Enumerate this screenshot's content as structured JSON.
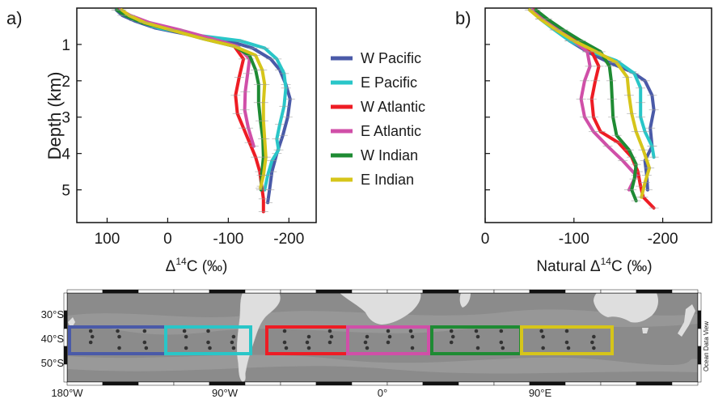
{
  "panel_a": {
    "label": "a)",
    "ylabel": "Depth (km)",
    "xlabel_delta": "Δ",
    "xlabel_sup": "14",
    "xlabel_rest": "C (‰)"
  },
  "panel_b": {
    "label": "b)",
    "xlabel_prefix": "Natural Δ",
    "xlabel_sup": "14",
    "xlabel_rest": "C (‰)"
  },
  "legend": [
    {
      "name": "W Pacific",
      "color": "#4a5aa8"
    },
    {
      "name": "E Pacific",
      "color": "#29c6c8"
    },
    {
      "name": "W Atlantic",
      "color": "#ee1c24"
    },
    {
      "name": "E Atlantic",
      "color": "#d04fa8"
    },
    {
      "name": "W Indian",
      "color": "#1e8b33"
    },
    {
      "name": "E Indian",
      "color": "#d6c51a"
    }
  ],
  "chart_data": [
    {
      "type": "line",
      "panel": "a",
      "xlabel": "Δ14C (‰)",
      "ylabel": "Depth (km)",
      "xlim": [
        150,
        -245
      ],
      "ylim": [
        0,
        5.9
      ],
      "xticks": [
        100,
        0,
        -100,
        -200
      ],
      "xtick_labels": [
        "100",
        "0",
        "-100",
        "-200"
      ],
      "yticks": [
        1,
        2,
        3,
        4,
        5
      ],
      "series": [
        {
          "name": "W Pacific",
          "color": "#4a5aa8",
          "points": [
            [
              85,
              0.05
            ],
            [
              75,
              0.2
            ],
            [
              55,
              0.35
            ],
            [
              20,
              0.55
            ],
            [
              -40,
              0.75
            ],
            [
              -100,
              0.9
            ],
            [
              -140,
              1.1
            ],
            [
              -170,
              1.4
            ],
            [
              -185,
              1.7
            ],
            [
              -195,
              2.1
            ],
            [
              -202,
              2.5
            ],
            [
              -198,
              3.0
            ],
            [
              -190,
              3.5
            ],
            [
              -180,
              4.0
            ],
            [
              -172,
              4.5
            ],
            [
              -168,
              5.0
            ],
            [
              -165,
              5.35
            ]
          ]
        },
        {
          "name": "E Pacific",
          "color": "#29c6c8",
          "points": [
            [
              80,
              0.05
            ],
            [
              70,
              0.2
            ],
            [
              50,
              0.35
            ],
            [
              15,
              0.55
            ],
            [
              -50,
              0.75
            ],
            [
              -120,
              0.9
            ],
            [
              -160,
              1.1
            ],
            [
              -180,
              1.4
            ],
            [
              -192,
              1.8
            ],
            [
              -195,
              2.2
            ],
            [
              -192,
              2.7
            ],
            [
              -185,
              3.2
            ],
            [
              -180,
              3.6
            ],
            [
              -183,
              3.9
            ],
            [
              -172,
              4.2
            ],
            [
              -165,
              4.6
            ],
            [
              -160,
              5.0
            ]
          ]
        },
        {
          "name": "W Atlantic",
          "color": "#ee1c24",
          "points": [
            [
              82,
              0.05
            ],
            [
              68,
              0.2
            ],
            [
              40,
              0.4
            ],
            [
              -10,
              0.6
            ],
            [
              -70,
              0.85
            ],
            [
              -110,
              1.05
            ],
            [
              -125,
              1.4
            ],
            [
              -118,
              1.9
            ],
            [
              -112,
              2.4
            ],
            [
              -115,
              2.9
            ],
            [
              -125,
              3.3
            ],
            [
              -135,
              3.7
            ],
            [
              -145,
              4.1
            ],
            [
              -152,
              4.5
            ],
            [
              -155,
              4.9
            ],
            [
              -158,
              5.25
            ],
            [
              -158,
              5.6
            ]
          ]
        },
        {
          "name": "E Atlantic",
          "color": "#d04fa8",
          "points": [
            [
              78,
              0.05
            ],
            [
              62,
              0.2
            ],
            [
              30,
              0.4
            ],
            [
              -20,
              0.6
            ],
            [
              -75,
              0.85
            ],
            [
              -115,
              1.05
            ],
            [
              -135,
              1.4
            ],
            [
              -132,
              1.8
            ],
            [
              -128,
              2.3
            ],
            [
              -127,
              2.8
            ],
            [
              -133,
              3.3
            ],
            [
              -142,
              3.8
            ]
          ]
        },
        {
          "name": "W Indian",
          "color": "#1e8b33",
          "points": [
            [
              84,
              0.05
            ],
            [
              70,
              0.2
            ],
            [
              42,
              0.4
            ],
            [
              -5,
              0.6
            ],
            [
              -60,
              0.85
            ],
            [
              -110,
              1.05
            ],
            [
              -135,
              1.3
            ],
            [
              -145,
              1.7
            ],
            [
              -150,
              2.1
            ],
            [
              -150,
              2.6
            ],
            [
              -153,
              3.1
            ],
            [
              -157,
              3.6
            ],
            [
              -158,
              4.1
            ],
            [
              -155,
              4.6
            ],
            [
              -154,
              5.0
            ]
          ]
        },
        {
          "name": "E Indian",
          "color": "#d6c51a",
          "points": [
            [
              76,
              0.05
            ],
            [
              64,
              0.2
            ],
            [
              38,
              0.4
            ],
            [
              -5,
              0.6
            ],
            [
              -60,
              0.85
            ],
            [
              -110,
              1.05
            ],
            [
              -145,
              1.3
            ],
            [
              -156,
              1.7
            ],
            [
              -160,
              2.1
            ],
            [
              -158,
              2.6
            ],
            [
              -158,
              3.1
            ],
            [
              -160,
              3.6
            ],
            [
              -162,
              4.1
            ],
            [
              -158,
              4.6
            ],
            [
              -153,
              4.95
            ]
          ]
        }
      ]
    },
    {
      "type": "line",
      "panel": "b",
      "xlabel": "Natural Δ14C (‰)",
      "xlim": [
        0,
        -255
      ],
      "ylim": [
        0,
        5.9
      ],
      "xticks": [
        0,
        -100,
        -200
      ],
      "xtick_labels": [
        "0",
        "-100",
        "-200"
      ],
      "series": [
        {
          "name": "W Pacific",
          "color": "#4a5aa8",
          "points": [
            [
              -55,
              0.05
            ],
            [
              -65,
              0.3
            ],
            [
              -80,
              0.6
            ],
            [
              -95,
              0.9
            ],
            [
              -115,
              1.2
            ],
            [
              -140,
              1.5
            ],
            [
              -165,
              1.75
            ],
            [
              -180,
              2.0
            ],
            [
              -188,
              2.4
            ],
            [
              -190,
              2.8
            ],
            [
              -186,
              3.3
            ],
            [
              -188,
              3.8
            ],
            [
              -180,
              4.2
            ],
            [
              -182,
              4.6
            ],
            [
              -183,
              5.0
            ]
          ]
        },
        {
          "name": "E Pacific",
          "color": "#29c6c8",
          "points": [
            [
              -52,
              0.05
            ],
            [
              -62,
              0.3
            ],
            [
              -78,
              0.6
            ],
            [
              -95,
              0.9
            ],
            [
              -120,
              1.2
            ],
            [
              -148,
              1.45
            ],
            [
              -168,
              1.8
            ],
            [
              -175,
              2.2
            ],
            [
              -175,
              2.6
            ],
            [
              -175,
              3.0
            ],
            [
              -180,
              3.4
            ],
            [
              -188,
              3.8
            ],
            [
              -190,
              4.1
            ]
          ]
        },
        {
          "name": "W Atlantic",
          "color": "#ee1c24",
          "points": [
            [
              -55,
              0.05
            ],
            [
              -68,
              0.3
            ],
            [
              -85,
              0.6
            ],
            [
              -105,
              0.9
            ],
            [
              -120,
              1.2
            ],
            [
              -128,
              1.6
            ],
            [
              -124,
              2.0
            ],
            [
              -120,
              2.5
            ],
            [
              -122,
              3.0
            ],
            [
              -130,
              3.4
            ],
            [
              -150,
              3.7
            ],
            [
              -165,
              4.1
            ],
            [
              -172,
              4.5
            ],
            [
              -175,
              4.9
            ],
            [
              -178,
              5.2
            ],
            [
              -190,
              5.5
            ]
          ]
        },
        {
          "name": "E Atlantic",
          "color": "#d04fa8",
          "points": [
            [
              -53,
              0.05
            ],
            [
              -65,
              0.3
            ],
            [
              -82,
              0.6
            ],
            [
              -100,
              0.9
            ],
            [
              -115,
              1.2
            ],
            [
              -118,
              1.6
            ],
            [
              -112,
              2.0
            ],
            [
              -108,
              2.5
            ],
            [
              -112,
              3.0
            ],
            [
              -122,
              3.4
            ],
            [
              -138,
              3.8
            ],
            [
              -155,
              4.2
            ],
            [
              -170,
              4.6
            ],
            [
              -162,
              5.0
            ]
          ]
        },
        {
          "name": "W Indian",
          "color": "#1e8b33",
          "points": [
            [
              -57,
              0.05
            ],
            [
              -70,
              0.3
            ],
            [
              -88,
              0.6
            ],
            [
              -108,
              0.9
            ],
            [
              -130,
              1.2
            ],
            [
              -140,
              1.6
            ],
            [
              -142,
              2.0
            ],
            [
              -143,
              2.5
            ],
            [
              -144,
              3.0
            ],
            [
              -148,
              3.5
            ],
            [
              -162,
              3.9
            ],
            [
              -170,
              4.3
            ],
            [
              -168,
              4.7
            ],
            [
              -165,
              5.0
            ],
            [
              -170,
              5.3
            ]
          ]
        },
        {
          "name": "E Indian",
          "color": "#d6c51a",
          "points": [
            [
              -50,
              0.05
            ],
            [
              -62,
              0.3
            ],
            [
              -80,
              0.6
            ],
            [
              -100,
              0.9
            ],
            [
              -125,
              1.2
            ],
            [
              -148,
              1.5
            ],
            [
              -160,
              1.9
            ],
            [
              -162,
              2.4
            ],
            [
              -165,
              2.9
            ],
            [
              -170,
              3.4
            ],
            [
              -178,
              3.9
            ],
            [
              -185,
              4.4
            ],
            [
              -180,
              4.8
            ],
            [
              -176,
              5.2
            ]
          ]
        }
      ]
    },
    {
      "type": "map",
      "panel": "map",
      "yticks": [
        "30°S",
        "40°S",
        "50°S"
      ],
      "xticks": [
        "180°W",
        "90°W",
        "0°",
        "90°E"
      ],
      "watermark": "Ocean Data View",
      "regions": [
        {
          "name": "W Pacific",
          "color": "#4a5aa8"
        },
        {
          "name": "E Pacific",
          "color": "#29c6c8"
        },
        {
          "name": "W Atlantic",
          "color": "#ee1c24"
        },
        {
          "name": "E Atlantic",
          "color": "#d04fa8"
        },
        {
          "name": "W Indian",
          "color": "#1e8b33"
        },
        {
          "name": "E Indian",
          "color": "#d6c51a"
        }
      ]
    }
  ]
}
